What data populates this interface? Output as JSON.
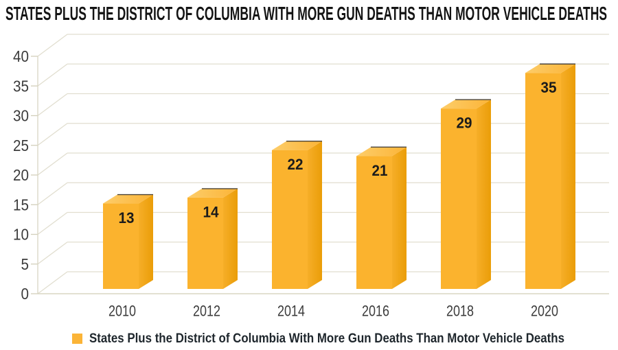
{
  "title": "STATES PLUS THE DISTRICT OF COLUMBIA WITH MORE GUN DEATHS THAN MOTOR VEHICLE DEATHS",
  "legend": {
    "label": "States Plus the District of Columbia With More Gun Deaths Than Motor Vehicle Deaths",
    "swatch_color": "#FBB437"
  },
  "chart_data": {
    "type": "bar",
    "style": "3d-column",
    "title": "STATES PLUS THE DISTRICT OF COLUMBIA WITH MORE GUN DEATHS THAN MOTOR VEHICLE DEATHS",
    "categories": [
      "2010",
      "2012",
      "2014",
      "2016",
      "2018",
      "2020"
    ],
    "values": [
      13,
      14,
      22,
      21,
      29,
      35
    ],
    "series": [
      {
        "name": "States Plus the District of Columbia With More Gun Deaths Than Motor Vehicle Deaths",
        "values": [
          13,
          14,
          22,
          21,
          29,
          35
        ]
      }
    ],
    "data_labels": [
      13,
      14,
      22,
      21,
      29,
      35
    ],
    "xlabel": "",
    "ylabel": "",
    "ylim": [
      0,
      40
    ],
    "yticks": [
      0,
      5,
      10,
      15,
      20,
      25,
      30,
      35,
      40
    ],
    "grid": true,
    "legend_position": "bottom",
    "colors": {
      "bar_front": "#FBB32E",
      "bar_top_light": "#FDCD6A",
      "bar_top_dark": "#FBB437",
      "bar_side_light": "#F6AE28",
      "bar_side_dark": "#EA9D08",
      "bar_top_edge": "#4A4339",
      "gridline": "#E1DECF",
      "axis_line": "#D8D5C2",
      "tick_mark": "#D2CEBA",
      "tick_text": "#3B3B3B",
      "value_text": "#1B1B1B",
      "title_text": "#141414",
      "legend_text": "#1E262C"
    }
  }
}
